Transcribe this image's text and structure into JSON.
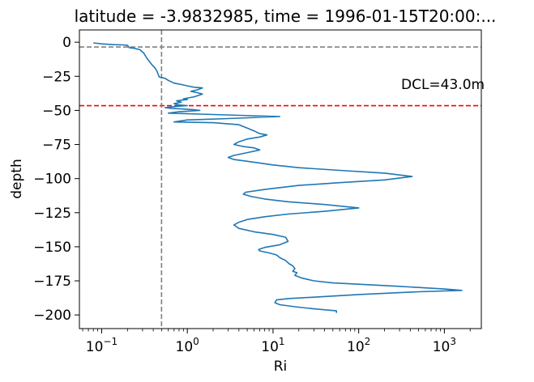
{
  "chart_data": {
    "type": "line",
    "title": "latitude = -3.9832985, time = 1996-01-15T20:00:...",
    "xlabel": "Ri",
    "ylabel": "depth",
    "xscale": "log",
    "xlim": [
      0.055,
      2700
    ],
    "ylim": [
      -210,
      9
    ],
    "x_ticks": [
      {
        "base": "10",
        "exp": "−1",
        "value": 0.1
      },
      {
        "base": "10",
        "exp": "0",
        "value": 1
      },
      {
        "base": "10",
        "exp": "1",
        "value": 10
      },
      {
        "base": "10",
        "exp": "2",
        "value": 100
      },
      {
        "base": "10",
        "exp": "3",
        "value": 1000
      }
    ],
    "y_ticks": [
      {
        "label": "0",
        "value": 0
      },
      {
        "label": "−25",
        "value": -25
      },
      {
        "label": "−50",
        "value": -50
      },
      {
        "label": "−75",
        "value": -75
      },
      {
        "label": "−100",
        "value": -100
      },
      {
        "label": "−125",
        "value": -125
      },
      {
        "label": "−150",
        "value": -150
      },
      {
        "label": "−175",
        "value": -175
      },
      {
        "label": "−200",
        "value": -200
      }
    ],
    "grid": false,
    "annotation": "DCL=43.0m",
    "reference_lines": [
      {
        "orientation": "horizontal",
        "value": -3.5,
        "color": "#808080",
        "style": "dashed"
      },
      {
        "orientation": "horizontal",
        "value": -46.5,
        "color": "#ff0000",
        "style": "dashed"
      },
      {
        "orientation": "vertical",
        "value": 0.5,
        "color": "#808080",
        "style": "dashed"
      }
    ],
    "series": [
      {
        "color": "#1f77b4",
        "points": [
          [
            0.08,
            -0.5
          ],
          [
            0.1,
            -1.2
          ],
          [
            0.14,
            -1.8
          ],
          [
            0.18,
            -2.0
          ],
          [
            0.2,
            -2.2
          ],
          [
            0.21,
            -4.0
          ],
          [
            0.24,
            -4.5
          ],
          [
            0.28,
            -5.5
          ],
          [
            0.31,
            -8.0
          ],
          [
            0.34,
            -12.0
          ],
          [
            0.38,
            -16.0
          ],
          [
            0.42,
            -19.0
          ],
          [
            0.44,
            -21.0
          ],
          [
            0.46,
            -24.0
          ],
          [
            0.47,
            -25.5
          ],
          [
            0.55,
            -26.5
          ],
          [
            0.6,
            -28.0
          ],
          [
            0.7,
            -30.0
          ],
          [
            0.85,
            -31.0
          ],
          [
            1.0,
            -32.0
          ],
          [
            1.2,
            -33.0
          ],
          [
            1.5,
            -33.5
          ],
          [
            1.3,
            -35.0
          ],
          [
            1.1,
            -36.0
          ],
          [
            1.3,
            -37.0
          ],
          [
            1.5,
            -38.0
          ],
          [
            1.2,
            -40.0
          ],
          [
            0.9,
            -41.5
          ],
          [
            1.0,
            -42.0
          ],
          [
            0.85,
            -42.5
          ],
          [
            0.75,
            -43.0
          ],
          [
            0.85,
            -44.0
          ],
          [
            0.7,
            -45.0
          ],
          [
            0.8,
            -46.0
          ],
          [
            1.0,
            -46.5
          ],
          [
            0.75,
            -47.0
          ],
          [
            0.55,
            -48.0
          ],
          [
            0.65,
            -48.5
          ],
          [
            0.9,
            -49.0
          ],
          [
            1.2,
            -49.5
          ],
          [
            1.4,
            -50.0
          ],
          [
            0.8,
            -51.0
          ],
          [
            0.6,
            -52.0
          ],
          [
            2.0,
            -53.0
          ],
          [
            12.0,
            -54.5
          ],
          [
            3.0,
            -56.0
          ],
          [
            1.0,
            -57.0
          ],
          [
            0.7,
            -58.5
          ],
          [
            2.0,
            -59.0
          ],
          [
            4.0,
            -60.5
          ],
          [
            5.0,
            -63.0
          ],
          [
            6.0,
            -65.0
          ],
          [
            7.0,
            -67.0
          ],
          [
            8.5,
            -68.0
          ],
          [
            7.0,
            -69.5
          ],
          [
            5.0,
            -71.0
          ],
          [
            4.0,
            -73.0
          ],
          [
            3.5,
            -75.0
          ],
          [
            4.5,
            -76.5
          ],
          [
            6.0,
            -77.5
          ],
          [
            7.0,
            -79.0
          ],
          [
            5.0,
            -81.0
          ],
          [
            3.5,
            -83.0
          ],
          [
            3.0,
            -84.5
          ],
          [
            3.5,
            -86.0
          ],
          [
            6.0,
            -88.0
          ],
          [
            10.0,
            -90.0
          ],
          [
            20.0,
            -92.0
          ],
          [
            60.0,
            -94.0
          ],
          [
            200.0,
            -96.0
          ],
          [
            420.0,
            -98.5
          ],
          [
            200.0,
            -101.0
          ],
          [
            60.0,
            -103.0
          ],
          [
            20.0,
            -105.0
          ],
          [
            8.0,
            -108.0
          ],
          [
            4.8,
            -110.0
          ],
          [
            4.5,
            -111.5
          ],
          [
            5.5,
            -113.0
          ],
          [
            8.0,
            -115.0
          ],
          [
            15.0,
            -117.0
          ],
          [
            40.0,
            -119.0
          ],
          [
            100.0,
            -121.5
          ],
          [
            40.0,
            -124.0
          ],
          [
            15.0,
            -126.0
          ],
          [
            8.0,
            -128.0
          ],
          [
            5.0,
            -130.0
          ],
          [
            4.0,
            -132.0
          ],
          [
            3.5,
            -134.0
          ],
          [
            4.0,
            -136.5
          ],
          [
            6.0,
            -139.0
          ],
          [
            10.0,
            -141.0
          ],
          [
            14.0,
            -143.0
          ],
          [
            15.0,
            -146.0
          ],
          [
            12.0,
            -148.5
          ],
          [
            8.0,
            -150.5
          ],
          [
            6.8,
            -152.0
          ],
          [
            7.0,
            -153.0
          ],
          [
            9.0,
            -154.5
          ],
          [
            11.0,
            -156.0
          ],
          [
            12.0,
            -158.0
          ],
          [
            14.0,
            -160.0
          ],
          [
            15.5,
            -162.5
          ],
          [
            17.0,
            -164.0
          ],
          [
            18.0,
            -166.0
          ],
          [
            17.0,
            -168.0
          ],
          [
            19.0,
            -169.0
          ],
          [
            18.0,
            -171.0
          ],
          [
            22.0,
            -173.0
          ],
          [
            30.0,
            -175.0
          ],
          [
            50.0,
            -176.5
          ],
          [
            100.0,
            -177.5
          ],
          [
            300.0,
            -179.0
          ],
          [
            1000.0,
            -181.0
          ],
          [
            1600.0,
            -182.0
          ],
          [
            500.0,
            -183.0
          ],
          [
            100.0,
            -185.0
          ],
          [
            30.0,
            -187.0
          ],
          [
            15.0,
            -188.0
          ],
          [
            11.0,
            -189.0
          ],
          [
            10.5,
            -191.0
          ],
          [
            12.0,
            -192.5
          ],
          [
            18.0,
            -194.0
          ],
          [
            30.0,
            -195.5
          ],
          [
            55.0,
            -197.0
          ],
          [
            55.0,
            -198.5
          ]
        ]
      }
    ]
  }
}
